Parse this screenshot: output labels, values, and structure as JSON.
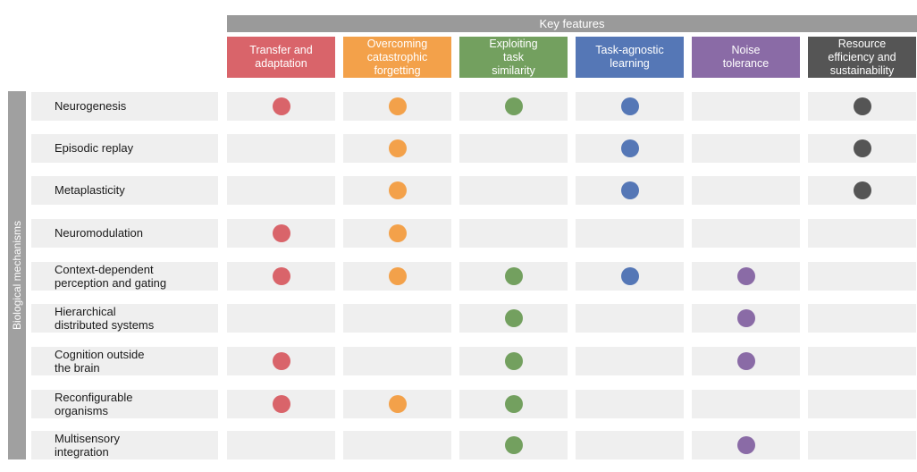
{
  "header": {
    "title": "Key features"
  },
  "side_label": "Biological mechanisms",
  "columns": [
    {
      "label": "Transfer  and\nadaptation",
      "color": "#d9646a"
    },
    {
      "label": "Overcoming\ncatastrophic\nforgetting",
      "color": "#f3a14a"
    },
    {
      "label": "Exploiting\ntask\nsimilarity",
      "color": "#73a05f"
    },
    {
      "label": "Task-agnostic\nlearning",
      "color": "#5577b6"
    },
    {
      "label": "Noise\ntolerance",
      "color": "#8a6ba6"
    },
    {
      "label": "Resource\nefficiency and\nsustainability",
      "color": "#555555"
    }
  ],
  "rows": [
    {
      "label": "Neurogenesis",
      "marks": [
        1,
        1,
        1,
        1,
        0,
        1
      ]
    },
    {
      "label": "Episodic replay",
      "marks": [
        0,
        1,
        0,
        1,
        0,
        1
      ]
    },
    {
      "label": "Metaplasticity",
      "marks": [
        0,
        1,
        0,
        1,
        0,
        1
      ]
    },
    {
      "label": "Neuromodulation",
      "marks": [
        1,
        1,
        0,
        0,
        0,
        0
      ]
    },
    {
      "label": "Context-dependent\nperception and gating",
      "marks": [
        1,
        1,
        1,
        1,
        1,
        0
      ]
    },
    {
      "label": "Hierarchical\ndistributed systems",
      "marks": [
        0,
        0,
        1,
        0,
        1,
        0
      ]
    },
    {
      "label": "Cognition outside\nthe brain",
      "marks": [
        1,
        0,
        1,
        0,
        1,
        0
      ]
    },
    {
      "label": "Reconfigurable\norganisms",
      "marks": [
        1,
        1,
        1,
        0,
        0,
        0
      ]
    },
    {
      "label": "Multisensory\nintegration",
      "marks": [
        0,
        0,
        1,
        0,
        1,
        0
      ]
    }
  ]
}
